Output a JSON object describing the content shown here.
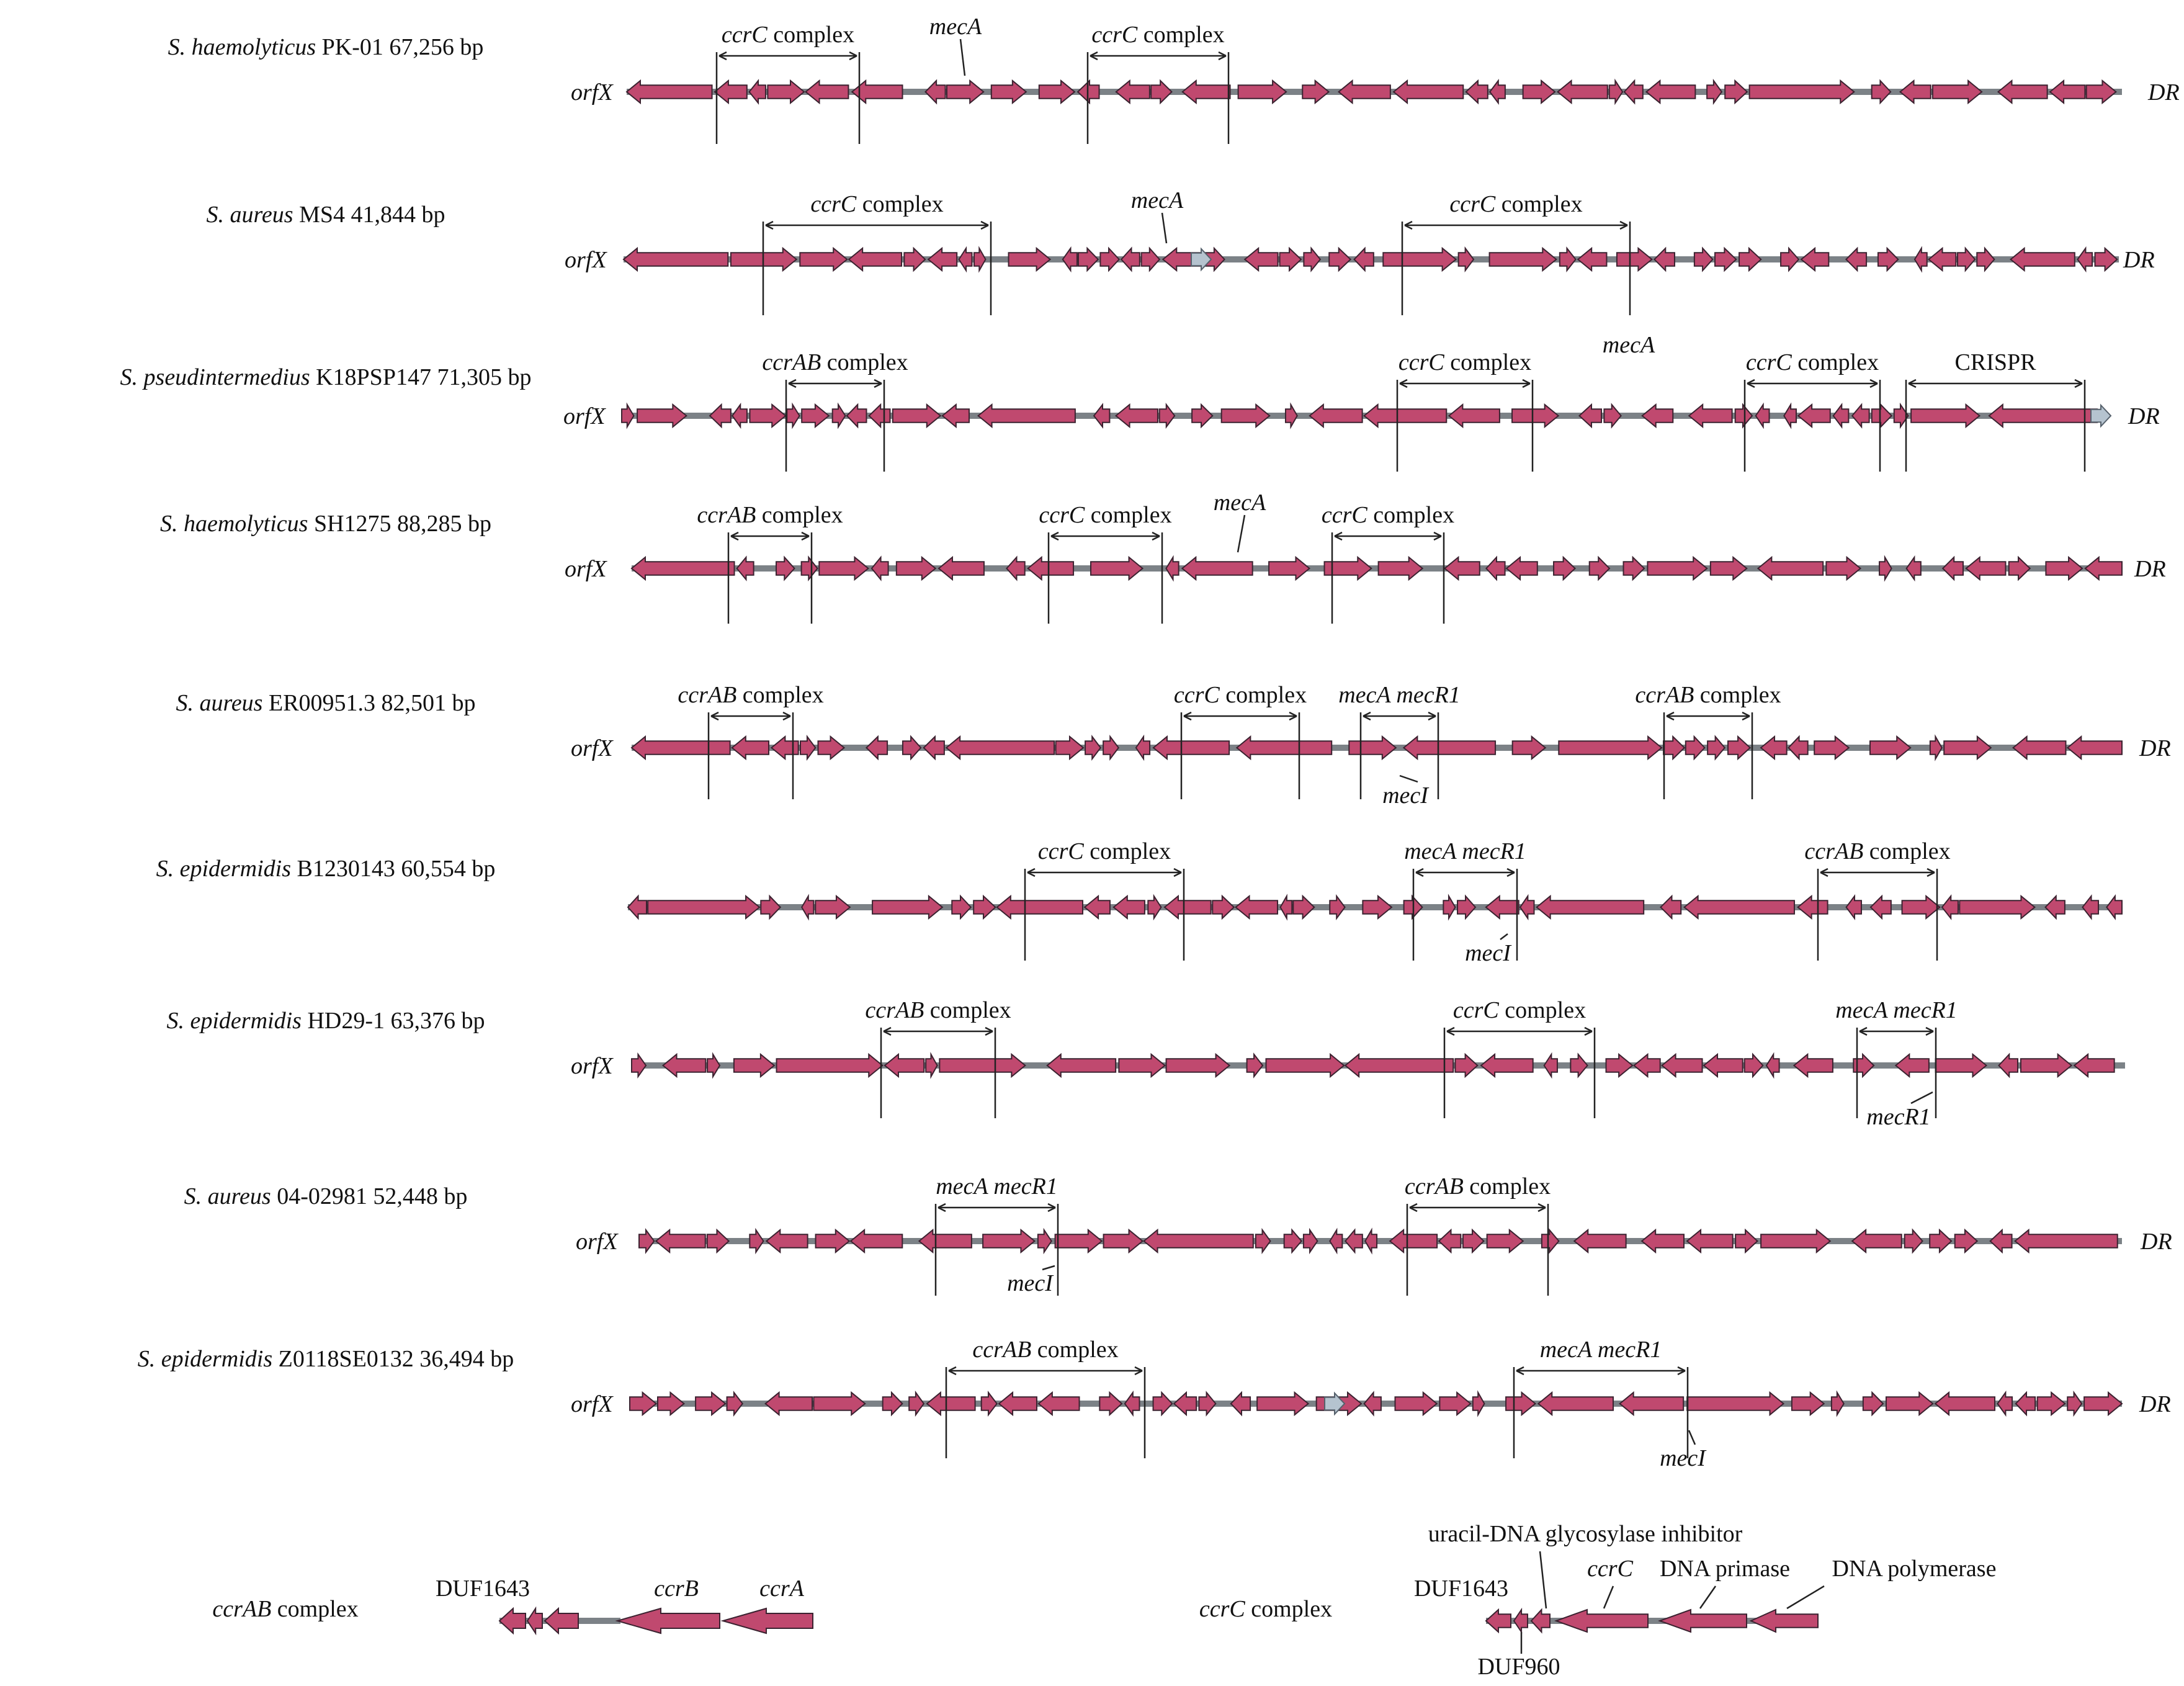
{
  "colors": {
    "gene": "#c0496f",
    "gene_outline": "#3b2230",
    "backbone": "#7c8287",
    "unknown_gene": "#b5c3cf"
  },
  "orfx_label": "orfX",
  "dr_label": "DR",
  "rows": [
    {
      "species": "S. haemolyticus",
      "strain": "PK-01",
      "size": "67,256 bp",
      "show_orfx": true,
      "show_dr": true,
      "regions": [
        {
          "name": "ccrC",
          "suffix": " complex"
        },
        {
          "name": "ccrC",
          "suffix": " complex"
        }
      ],
      "callouts": [
        {
          "text": "mecA",
          "pos": "above"
        }
      ]
    },
    {
      "species": "S. aureus",
      "strain": "MS4",
      "size": "41,844 bp",
      "show_orfx": true,
      "show_dr": true,
      "regions": [
        {
          "name": "ccrC",
          "suffix": " complex"
        },
        {
          "name": "ccrC",
          "suffix": " complex"
        }
      ],
      "callouts": [
        {
          "text": "mecA",
          "pos": "above"
        }
      ]
    },
    {
      "species": "S. pseudintermedius",
      "strain": "K18PSP147",
      "size": "71,305 bp",
      "show_orfx": true,
      "show_dr": true,
      "regions": [
        {
          "name": "ccrAB",
          "suffix": " complex"
        },
        {
          "name": "ccrC",
          "suffix": " complex"
        },
        {
          "name": "ccrC",
          "suffix": " complex"
        },
        {
          "name": "",
          "suffix": "CRISPR"
        }
      ],
      "callouts": [
        {
          "text": "mecA",
          "pos": "above"
        }
      ]
    },
    {
      "species": "S. haemolyticus",
      "strain": "SH1275",
      "size": "88,285 bp",
      "show_orfx": true,
      "show_dr": true,
      "regions": [
        {
          "name": "ccrAB",
          "suffix": " complex"
        },
        {
          "name": "ccrC",
          "suffix": " complex"
        },
        {
          "name": "ccrC",
          "suffix": " complex"
        }
      ],
      "callouts": [
        {
          "text": "mecA",
          "pos": "above"
        }
      ]
    },
    {
      "species": "S. aureus",
      "strain": "ER00951.3",
      "size": "82,501 bp",
      "show_orfx": true,
      "show_dr": true,
      "regions": [
        {
          "name": "ccrAB",
          "suffix": " complex"
        },
        {
          "name": "ccrC",
          "suffix": " complex"
        },
        {
          "name": "mecA mecR1",
          "suffix": ""
        },
        {
          "name": "ccrAB",
          "suffix": " complex"
        }
      ],
      "callouts": [
        {
          "text": "mecI",
          "pos": "below"
        }
      ]
    },
    {
      "species": "S. epidermidis",
      "strain": "B1230143",
      "size": "60,554 bp",
      "show_orfx": false,
      "show_dr": false,
      "regions": [
        {
          "name": "ccrC",
          "suffix": " complex"
        },
        {
          "name": "mecA mecR1",
          "suffix": ""
        },
        {
          "name": "ccrAB",
          "suffix": " complex"
        }
      ],
      "callouts": [
        {
          "text": "mecI",
          "pos": "below"
        }
      ]
    },
    {
      "species": "S. epidermidis",
      "strain": "HD29-1",
      "size": "63,376 bp",
      "show_orfx": true,
      "show_dr": false,
      "regions": [
        {
          "name": "ccrAB",
          "suffix": " complex"
        },
        {
          "name": "ccrC",
          "suffix": " complex"
        },
        {
          "name": "mecA mecR1",
          "suffix": ""
        }
      ],
      "callouts": [
        {
          "text": "mecR1",
          "pos": "below"
        }
      ]
    },
    {
      "species": "S. aureus",
      "strain": "04-02981",
      "size": "52,448 bp",
      "show_orfx": true,
      "show_dr": true,
      "regions": [
        {
          "name": "mecA mecR1",
          "suffix": ""
        },
        {
          "name": "ccrAB",
          "suffix": " complex"
        }
      ],
      "callouts": [
        {
          "text": "mecI",
          "pos": "below"
        }
      ]
    },
    {
      "species": "S. epidermidis",
      "strain": "Z0118SE0132",
      "size": "36,494 bp",
      "show_orfx": true,
      "show_dr": true,
      "regions": [
        {
          "name": "ccrAB",
          "suffix": " complex"
        },
        {
          "name": "mecA mecR1",
          "suffix": ""
        }
      ],
      "callouts": [
        {
          "text": "mecI",
          "pos": "below"
        }
      ]
    }
  ],
  "legend": {
    "ccrab": {
      "title_italic": "ccrAB",
      "title_rest": " complex",
      "genes": [
        "DUF1643",
        "ccrB",
        "ccrA"
      ]
    },
    "ccrc": {
      "title_italic": "ccrC",
      "title_rest": " complex",
      "genes": [
        "DUF1643",
        "DUF960",
        "uracil-DNA glycosylase inhibitor",
        "ccrC",
        "DNA primase",
        "DNA polymerase"
      ]
    }
  }
}
